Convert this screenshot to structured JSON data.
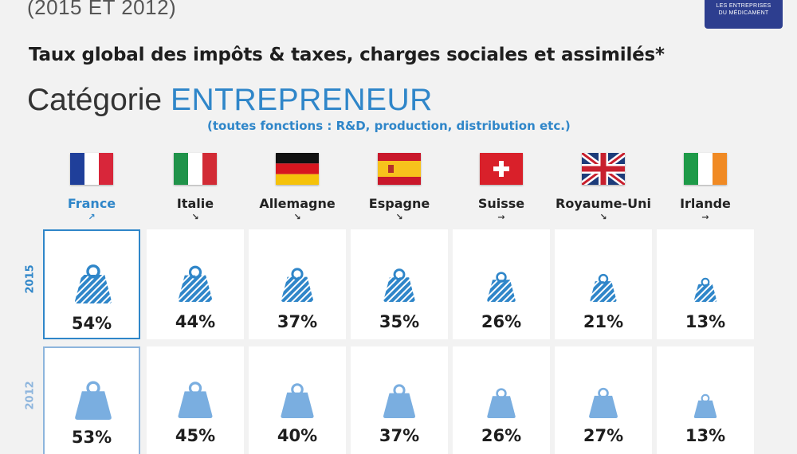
{
  "header": {
    "top_line": "(2015 ET 2012)",
    "logo_line1": "LES ENTREPRISES",
    "logo_line2": "DU MÉDICAMENT",
    "subtitle": "Taux global des impôts & taxes, charges sociales et assimilés*",
    "category_prefix": "Catégorie",
    "category_name": "ENTREPRENEUR",
    "note": "(toutes fonctions : R&D, production, distribution etc.)"
  },
  "countries": [
    {
      "name": "France",
      "trend": "↗"
    },
    {
      "name": "Italie",
      "trend": "↘"
    },
    {
      "name": "Allemagne",
      "trend": "↘"
    },
    {
      "name": "Espagne",
      "trend": "↘"
    },
    {
      "name": "Suisse",
      "trend": "→"
    },
    {
      "name": "Royaume-Uni",
      "trend": "↘"
    },
    {
      "name": "Irlande",
      "trend": "→"
    }
  ],
  "years": [
    {
      "year": "2015",
      "labels": [
        "54%",
        "44%",
        "37%",
        "35%",
        "26%",
        "21%",
        "13%"
      ]
    },
    {
      "year": "2012",
      "labels": [
        "53%",
        "45%",
        "40%",
        "37%",
        "26%",
        "27%",
        "13%"
      ]
    }
  ],
  "colors": {
    "accent": "#2f86c9",
    "light": "#8db5dd",
    "weight_2015": "#2f86c9",
    "weight_2012": "#7aaee0"
  },
  "chart_data": {
    "type": "table",
    "title": "Taux global des impôts & taxes, charges sociales et assimilés*",
    "categories": [
      "France",
      "Italie",
      "Allemagne",
      "Espagne",
      "Suisse",
      "Royaume-Uni",
      "Irlande"
    ],
    "series": [
      {
        "name": "2015",
        "values": [
          54,
          44,
          37,
          35,
          26,
          21,
          13
        ]
      },
      {
        "name": "2012",
        "values": [
          53,
          45,
          40,
          37,
          26,
          27,
          13
        ]
      }
    ],
    "unit": "%"
  }
}
